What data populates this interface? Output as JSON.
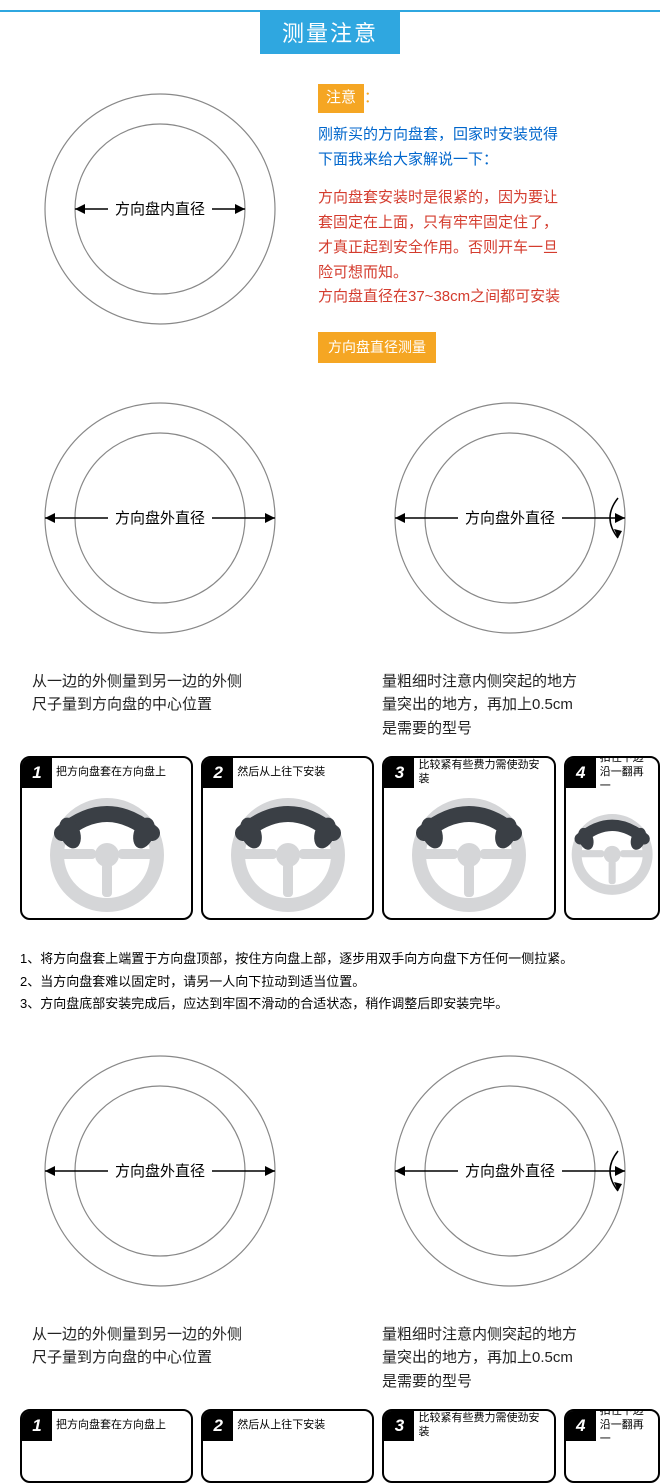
{
  "colors": {
    "primary": "#2fa7e0",
    "accent": "#f5a623",
    "blue_text": "#0066cc",
    "red_text": "#d43c2e",
    "circle_stroke": "#888888",
    "wheel_gray": "#d5d6d8",
    "wheel_dark": "#3a3f45"
  },
  "header": {
    "title": "测量注意"
  },
  "intro": {
    "notice_label": "注意",
    "colon": "：",
    "line_blue": "刚新买的方向盘套，回家时安装觉得\n下面我来给大家解说一下：",
    "line_red": "方向盘套安装时是很紧的，因为要让\n套固定在上面，只有牢牢固定住了，\n才真正起到安全作用。否则开车一旦\n险可想而知。\n方向盘直径在37~38cm之间都可安装",
    "measure_label": "方向盘直径测量"
  },
  "diagram": {
    "inner": {
      "label": "方向盘内直径"
    },
    "outer": {
      "label": "方向盘外直径"
    },
    "caption_left": "从一边的外侧量到另一边的外侧\n尺子量到方向盘的中心位置",
    "caption_right": "量粗细时注意内侧突起的地方\n量突出的地方，再加上0.5cm\n是需要的型号",
    "circle": {
      "r_outer": 115,
      "r_inner": 85,
      "stroke_width": 1.2,
      "arrow_len": 7
    }
  },
  "steps": [
    {
      "n": "1",
      "t": "把方向盘套在方向盘上"
    },
    {
      "n": "2",
      "t": "然后从上往下安装"
    },
    {
      "n": "3",
      "t": "比较紧有些费力需使劲安装"
    },
    {
      "n": "4",
      "t": "扣住下边沿一翻再一"
    }
  ],
  "instructions": [
    "1、将方向盘套上端置于方向盘顶部，按住方向盘上部，逐步用双手向方向盘下方任何一侧拉紧。",
    "2、当方向盘套难以固定时，请另一人向下拉动到适当位置。",
    "3、方向盘底部安装完成后，应达到牢固不滑动的合适状态，稍作调整后即安装完毕。"
  ]
}
